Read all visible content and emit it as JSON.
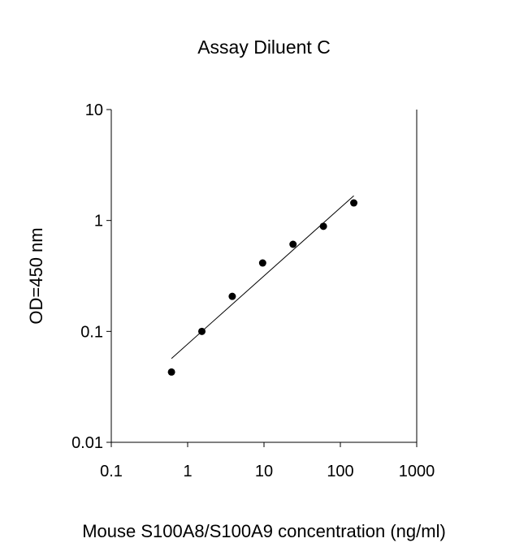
{
  "chart_data": {
    "type": "scatter",
    "title": "Assay Diluent C",
    "x_label": "Mouse S100A8/S100A9 concentration (ng/ml)",
    "y_label": "OD=450 nm",
    "x": [
      0.6144,
      1.536,
      3.84,
      9.6,
      24,
      60,
      150
    ],
    "values": [
      0.043,
      0.1,
      0.207,
      0.414,
      0.61,
      0.886,
      1.44
    ],
    "color": "#000000",
    "fit": {
      "x": [
        0.6144,
        150
      ],
      "values": [
        0.057,
        1.67
      ],
      "color": "#000000"
    },
    "xscale": "log",
    "yscale": "log",
    "xlim": [
      0.1,
      1000
    ],
    "ylim": [
      0.01,
      10
    ],
    "xticks": [
      0.1,
      1,
      10,
      100,
      1000
    ],
    "yticks": [
      0.01,
      0.1,
      1,
      10
    ]
  }
}
